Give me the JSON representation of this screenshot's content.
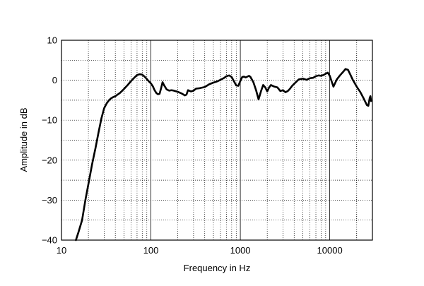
{
  "chart_data": {
    "type": "line",
    "xlabel": "Frequency in Hz",
    "ylabel": "Amplitude in dB",
    "x_scale": "log",
    "xlim": [
      10,
      30000
    ],
    "ylim": [
      -40,
      10
    ],
    "x_tick_labels": [
      {
        "value": 10,
        "label": "10"
      },
      {
        "value": 100,
        "label": "100"
      },
      {
        "value": 1000,
        "label": "1000"
      },
      {
        "value": 10000,
        "label": "10000"
      }
    ],
    "y_tick_labels": [
      {
        "value": 10,
        "label": "10"
      },
      {
        "value": 0,
        "label": "0"
      },
      {
        "value": -10,
        "label": "−10"
      },
      {
        "value": -20,
        "label": "−20"
      },
      {
        "value": -30,
        "label": "−30"
      },
      {
        "value": -40,
        "label": "−40"
      }
    ],
    "grid": true,
    "series": [
      {
        "color": "#000000",
        "x": [
          14.5,
          15.5,
          17,
          18.5,
          20,
          22,
          24,
          26,
          28,
          30,
          32,
          34,
          36,
          38,
          40,
          45,
          50,
          55,
          60,
          65,
          70,
          75,
          80,
          85,
          90,
          95,
          100,
          105,
          110,
          115,
          120,
          125,
          130,
          135,
          140,
          150,
          160,
          170,
          180,
          200,
          220,
          240,
          250,
          260,
          280,
          300,
          320,
          350,
          400,
          450,
          500,
          550,
          600,
          650,
          700,
          750,
          800,
          850,
          900,
          950,
          1000,
          1050,
          1100,
          1150,
          1200,
          1250,
          1300,
          1400,
          1500,
          1600,
          1700,
          1800,
          1900,
          2000,
          2100,
          2200,
          2400,
          2600,
          2800,
          3000,
          3200,
          3400,
          3600,
          3800,
          4000,
          4500,
          5000,
          5500,
          6000,
          6500,
          7000,
          7500,
          8000,
          8500,
          9000,
          9500,
          10000,
          11000,
          12000,
          13000,
          14000,
          15000,
          16000,
          17000,
          18000,
          20000,
          22000,
          24000,
          26000,
          27000,
          28000,
          28500,
          29000
        ],
        "values": [
          -40,
          -38,
          -35,
          -30,
          -26,
          -21,
          -17,
          -13,
          -9.5,
          -7,
          -5.8,
          -5,
          -4.5,
          -4.2,
          -4,
          -3.2,
          -2.2,
          -1.2,
          -0.2,
          0.6,
          1.3,
          1.5,
          1.4,
          0.9,
          0.3,
          -0.3,
          -0.8,
          -1.5,
          -2.5,
          -3.2,
          -3.5,
          -3.4,
          -2,
          -0.5,
          -1.2,
          -2.3,
          -2.6,
          -2.5,
          -2.6,
          -2.9,
          -3.3,
          -3.8,
          -3.6,
          -2.5,
          -2.8,
          -2.6,
          -2.1,
          -2.0,
          -1.7,
          -1.0,
          -0.6,
          -0.3,
          0.1,
          0.5,
          1.0,
          1.2,
          0.8,
          -0.3,
          -1.3,
          -1.4,
          -0.2,
          0.8,
          0.9,
          0.7,
          0.9,
          1.1,
          0.8,
          -0.5,
          -2.5,
          -4.8,
          -2.8,
          -1.2,
          -1.8,
          -2.8,
          -1.8,
          -1.2,
          -1.6,
          -1.8,
          -2.7,
          -2.5,
          -3.0,
          -2.7,
          -2.1,
          -1.4,
          -0.9,
          0.2,
          0.4,
          0.1,
          0.5,
          0.6,
          1.0,
          1.2,
          1.1,
          1.3,
          1.6,
          1.9,
          1.1,
          -1.6,
          0.2,
          1.2,
          2.0,
          2.8,
          2.6,
          1.4,
          0.2,
          -1.6,
          -3.0,
          -4.6,
          -6.2,
          -6.4,
          -4.4,
          -4.0,
          -5.2
        ]
      }
    ]
  }
}
